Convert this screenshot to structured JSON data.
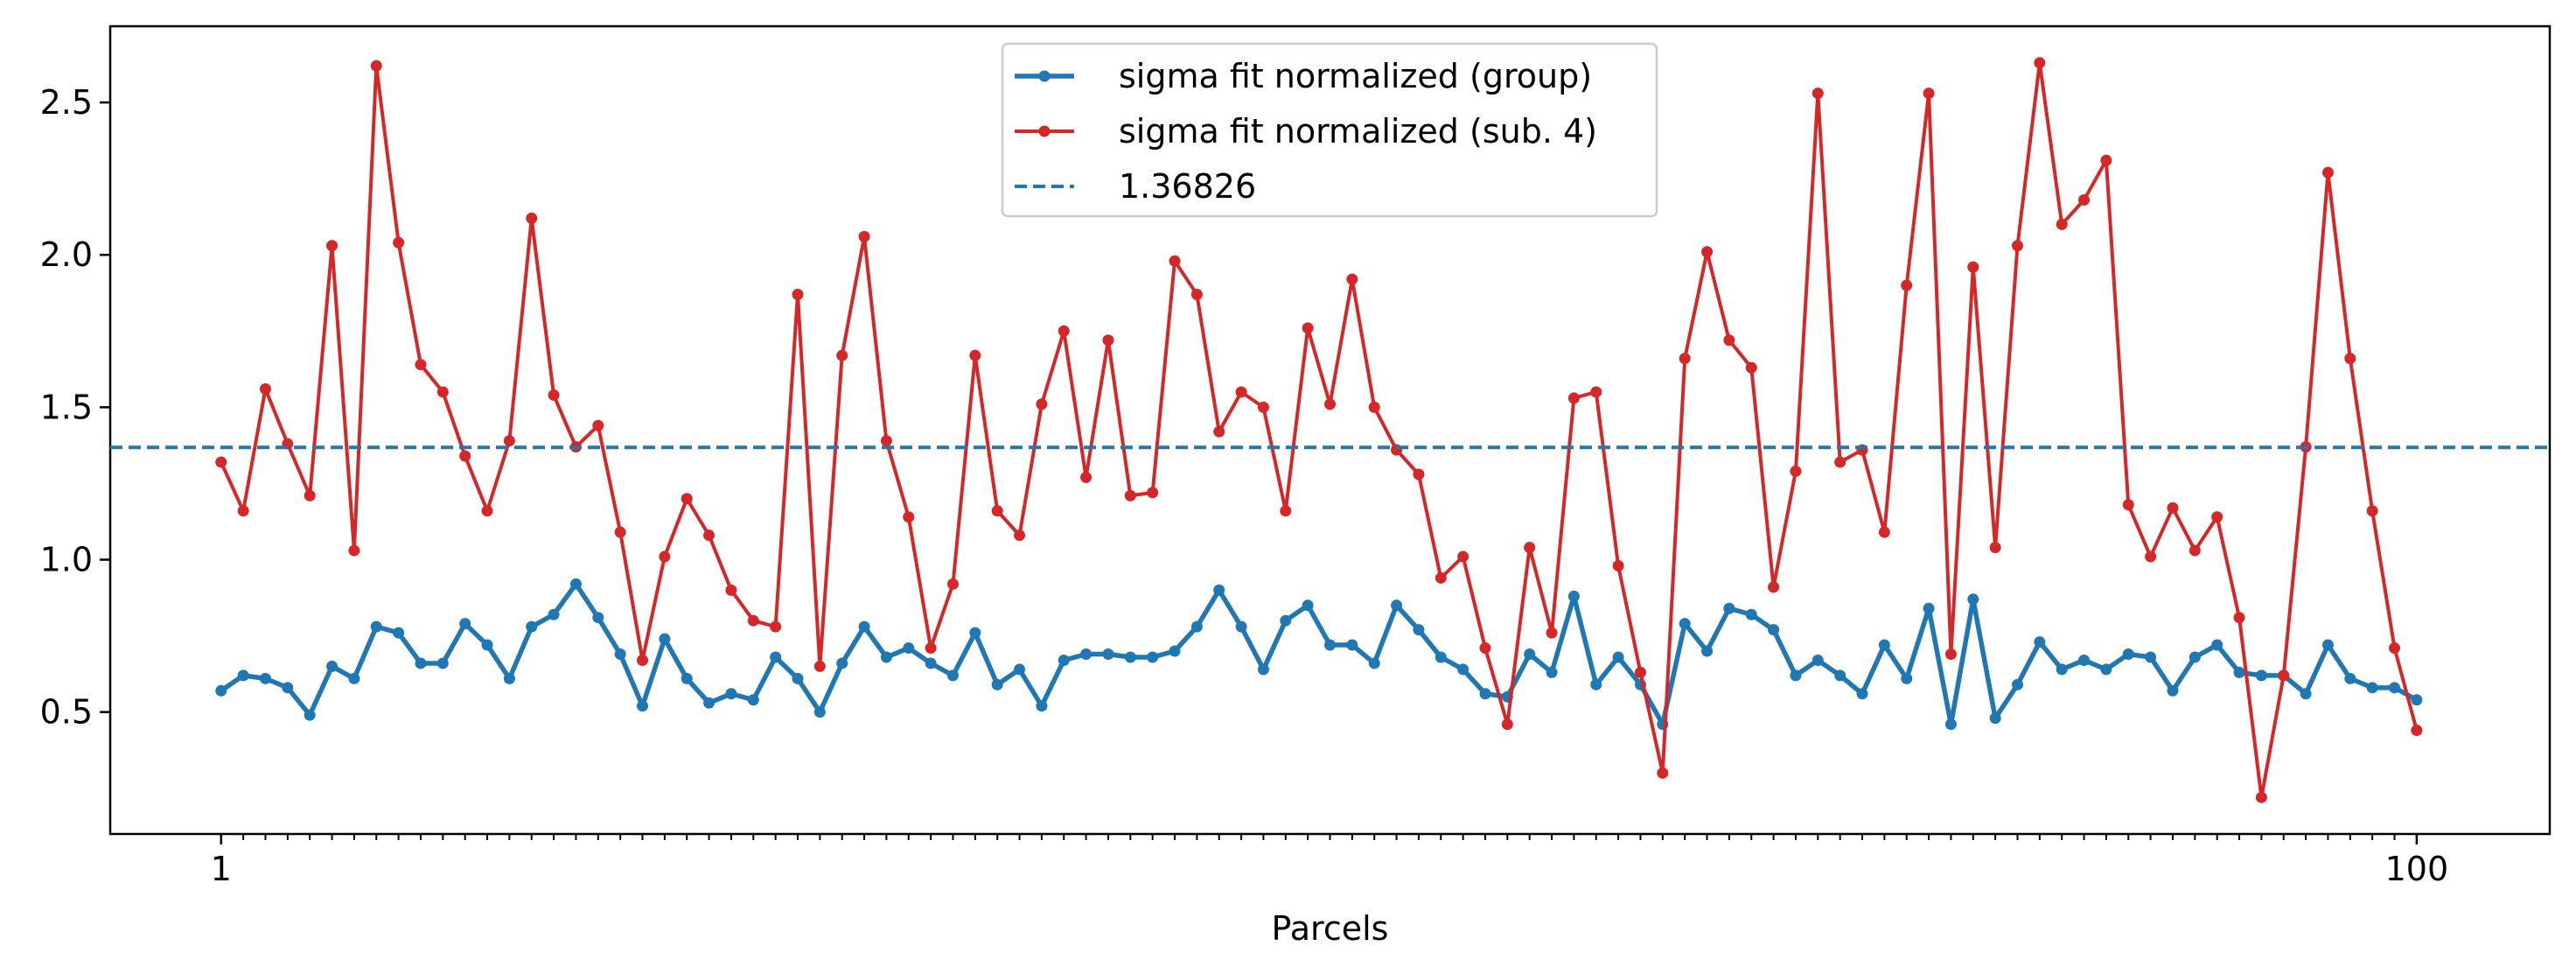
{
  "chart_data": {
    "type": "line",
    "xlabel": "Parcels",
    "ylabel": "",
    "title": "",
    "x": [
      1,
      2,
      3,
      4,
      5,
      6,
      7,
      8,
      9,
      10,
      11,
      12,
      13,
      14,
      15,
      16,
      17,
      18,
      19,
      20,
      21,
      22,
      23,
      24,
      25,
      26,
      27,
      28,
      29,
      30,
      31,
      32,
      33,
      34,
      35,
      36,
      37,
      38,
      39,
      40,
      41,
      42,
      43,
      44,
      45,
      46,
      47,
      48,
      49,
      50,
      51,
      52,
      53,
      54,
      55,
      56,
      57,
      58,
      59,
      60,
      61,
      62,
      63,
      64,
      65,
      66,
      67,
      68,
      69,
      70,
      71,
      72,
      73,
      74,
      75,
      76,
      77,
      78,
      79,
      80,
      81,
      82,
      83,
      84,
      85,
      86,
      87,
      88,
      89,
      90,
      91,
      92,
      93,
      94,
      95,
      96,
      97,
      98,
      99,
      100
    ],
    "xticks": [
      1,
      100
    ],
    "xtick_labels": [
      "1",
      "100"
    ],
    "yticks": [
      0.5,
      1.0,
      1.5,
      2.0,
      2.5
    ],
    "ytick_labels": [
      "0.5",
      "1.0",
      "1.5",
      "2.0",
      "2.5"
    ],
    "xlim": [
      -4,
      106
    ],
    "ylim": [
      0.1,
      2.75
    ],
    "grid": false,
    "legend_position": "top-center",
    "series": [
      {
        "name": "sigma fit normalized (group)",
        "color": "#1f77b4",
        "style": "solid-marker",
        "values": [
          0.57,
          0.62,
          0.61,
          0.58,
          0.49,
          0.65,
          0.61,
          0.78,
          0.76,
          0.66,
          0.66,
          0.79,
          0.72,
          0.61,
          0.78,
          0.82,
          0.92,
          0.81,
          0.69,
          0.52,
          0.74,
          0.61,
          0.53,
          0.56,
          0.54,
          0.68,
          0.61,
          0.5,
          0.66,
          0.78,
          0.68,
          0.71,
          0.66,
          0.62,
          0.76,
          0.59,
          0.64,
          0.52,
          0.67,
          0.69,
          0.69,
          0.68,
          0.68,
          0.7,
          0.78,
          0.9,
          0.78,
          0.64,
          0.8,
          0.85,
          0.72,
          0.72,
          0.66,
          0.85,
          0.77,
          0.68,
          0.64,
          0.56,
          0.55,
          0.69,
          0.63,
          0.88,
          0.59,
          0.68,
          0.59,
          0.46,
          0.79,
          0.7,
          0.84,
          0.82,
          0.77,
          0.62,
          0.67,
          0.62,
          0.56,
          0.72,
          0.61,
          0.84,
          0.46,
          0.87,
          0.48,
          0.59,
          0.73,
          0.64,
          0.67,
          0.64,
          0.69,
          0.68,
          0.57,
          0.68,
          0.72,
          0.63,
          0.62,
          0.62,
          0.56,
          0.72,
          0.61,
          0.58,
          0.58,
          0.54
        ]
      },
      {
        "name": "sigma fit normalized (sub. 4)",
        "color": "#d62728",
        "style": "solid-marker",
        "values": [
          1.32,
          1.16,
          1.56,
          1.38,
          1.21,
          2.03,
          1.03,
          2.62,
          2.04,
          1.64,
          1.55,
          1.34,
          1.16,
          1.39,
          2.12,
          1.54,
          1.37,
          1.44,
          1.09,
          0.67,
          1.01,
          1.2,
          1.08,
          0.9,
          0.8,
          0.78,
          1.87,
          0.65,
          1.67,
          2.06,
          1.39,
          1.14,
          0.71,
          0.92,
          1.67,
          1.16,
          1.08,
          1.51,
          1.75,
          1.27,
          1.72,
          1.21,
          1.22,
          1.98,
          1.87,
          1.42,
          1.55,
          1.5,
          1.16,
          1.76,
          1.51,
          1.92,
          1.5,
          1.36,
          1.28,
          0.94,
          1.01,
          0.71,
          0.46,
          1.04,
          0.76,
          1.53,
          1.55,
          0.98,
          0.63,
          0.3,
          1.66,
          2.01,
          1.72,
          1.63,
          0.91,
          1.29,
          2.53,
          1.32,
          1.36,
          1.09,
          1.9,
          2.53,
          0.69,
          1.96,
          1.04,
          2.03,
          2.63,
          2.1,
          2.18,
          2.31,
          1.18,
          1.01,
          1.17,
          1.03,
          1.14,
          0.81,
          0.22,
          0.62,
          1.37,
          2.27,
          1.66,
          1.16,
          0.71,
          0.44
        ]
      },
      {
        "name": "1.36826",
        "color": "#1f77b4",
        "style": "dashed",
        "hline": 1.36826
      }
    ]
  }
}
